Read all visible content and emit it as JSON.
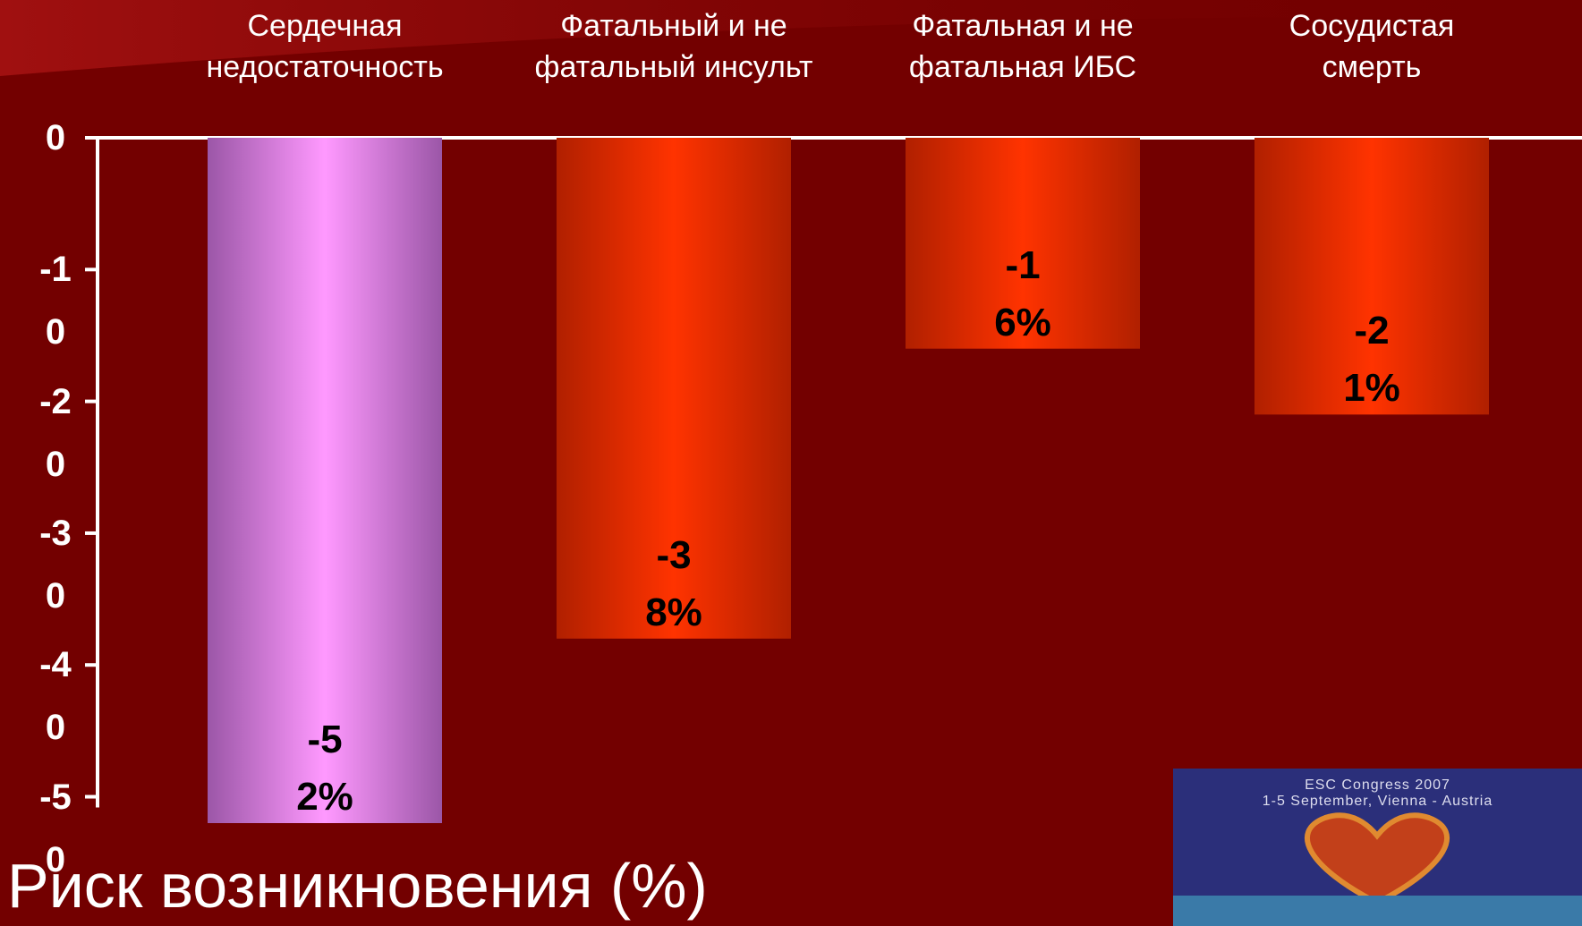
{
  "chart_data": {
    "type": "bar",
    "y_label": "Риск возникновения (%)",
    "categories": [
      "Сердечная недостаточность",
      "Фатальный и не фатальный инсульт",
      "Фатальная и не фатальная ИБС",
      "Сосудистая смерть"
    ],
    "values": [
      -52,
      -38,
      -16,
      -21
    ],
    "value_labels": [
      "-52%",
      "-38%",
      "-16%",
      "-21%"
    ],
    "colors": [
      "#ff99ff",
      "#ff3300",
      "#ff3300",
      "#ff3300"
    ],
    "ylim": [
      -52,
      0
    ],
    "yticks": [
      0,
      -10,
      -20,
      -30,
      -40,
      -50
    ]
  },
  "logo": {
    "line1": "ESC Congress 2007",
    "line2": "1-5 September, Vienna - Austria"
  }
}
